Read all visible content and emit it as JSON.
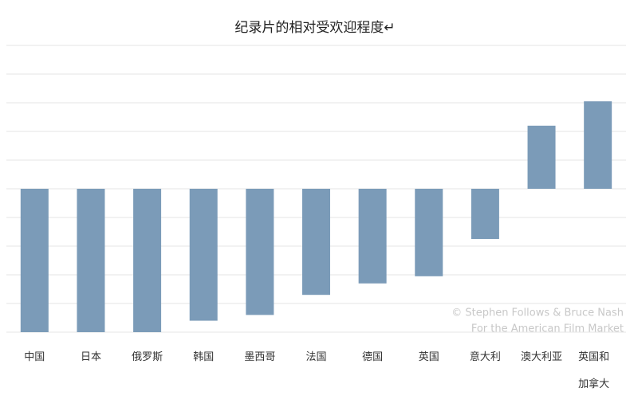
{
  "chart_data": {
    "type": "bar",
    "title": "纪录片的相对受欢迎程度↵",
    "categories": [
      "中国",
      "日本",
      "俄罗斯",
      "韩国",
      "墨西哥",
      "法国",
      "德国",
      "英国",
      "意大利",
      "澳大利亚",
      "英国和加拿大"
    ],
    "values": [
      -5,
      -5,
      -5,
      -4.6,
      -4.4,
      -3.7,
      -3.3,
      -3.05,
      -1.75,
      2.2,
      3.05
    ],
    "color": "#7b9bb8",
    "ylim": [
      -5,
      5
    ],
    "yticks": [
      -5,
      -4,
      -3,
      -2,
      -1,
      0,
      1,
      2,
      3,
      4,
      5
    ],
    "grid": true,
    "annotations": [
      "© Stephen Follows & Bruce Nash",
      "For the American Film Market"
    ]
  }
}
